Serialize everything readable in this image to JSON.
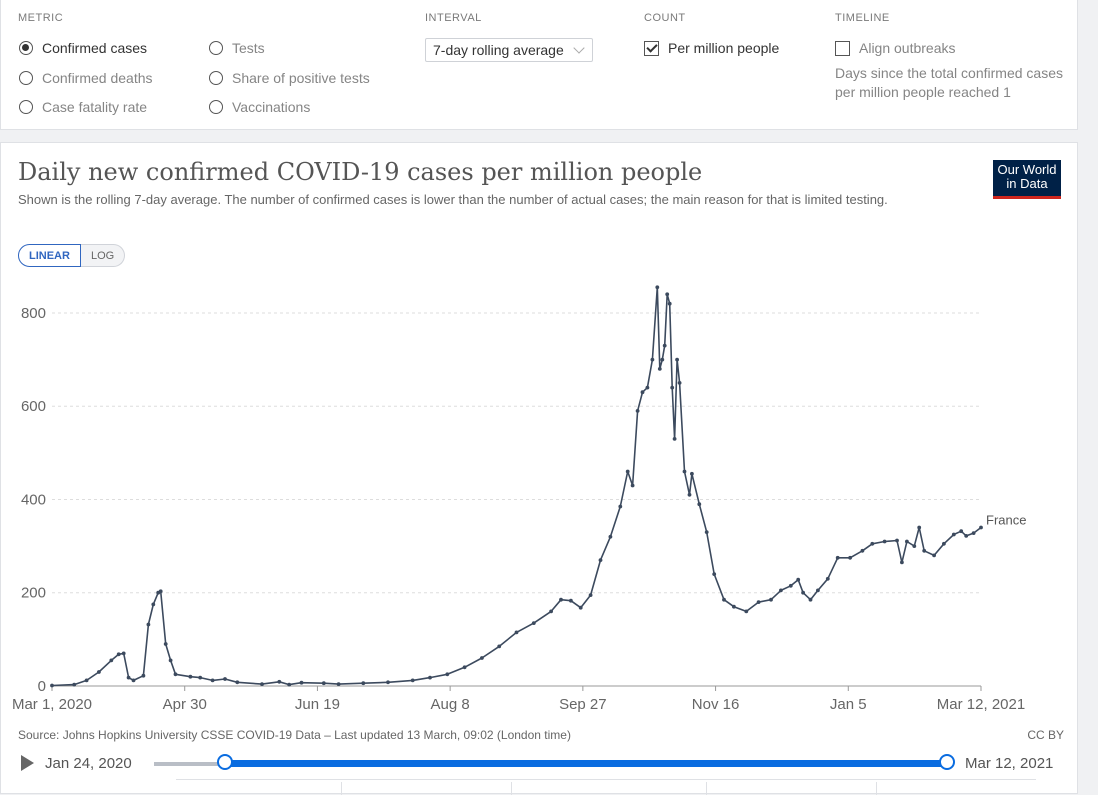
{
  "controls": {
    "metric": {
      "title": "METRIC",
      "options": [
        {
          "label": "Confirmed cases",
          "selected": true
        },
        {
          "label": "Confirmed deaths",
          "selected": false
        },
        {
          "label": "Case fatality rate",
          "selected": false
        },
        {
          "label": "Tests",
          "selected": false
        },
        {
          "label": "Share of positive tests",
          "selected": false
        },
        {
          "label": "Vaccinations",
          "selected": false
        }
      ]
    },
    "interval": {
      "title": "INTERVAL",
      "value": "7-day rolling average"
    },
    "count": {
      "title": "COUNT",
      "label": "Per million people",
      "checked": true
    },
    "timeline": {
      "title": "TIMELINE",
      "label": "Align outbreaks",
      "checked": false,
      "note": "Days since the total confirmed cases per million people reached 1"
    }
  },
  "header": {
    "title": "Daily new confirmed COVID-19 cases per million people",
    "subtitle": "Shown is the rolling 7-day average. The number of confirmed cases is lower than the number of actual cases; the main reason for that is limited testing.",
    "logo": "Our World in Data"
  },
  "scale_toggle": {
    "linear": "LINEAR",
    "log": "LOG",
    "selected": "linear"
  },
  "chart_data": {
    "type": "line",
    "title": "Daily new confirmed COVID-19 cases per million people",
    "x_ticks": [
      "Mar 1, 2020",
      "Apr 30",
      "Jun 19",
      "Aug 8",
      "Sep 27",
      "Nov 16",
      "Jan 5",
      "Mar 12, 2021"
    ],
    "y_ticks": [
      "0",
      "200",
      "400",
      "600",
      "800"
    ],
    "xlim": [
      "2020-03-01",
      "2021-03-12"
    ],
    "ylim": [
      0,
      860
    ],
    "grid": true,
    "series": [
      {
        "name": "France",
        "color": "#3c4a5e",
        "points": [
          [
            "2020-03-01",
            1
          ],
          [
            "2020-03-10",
            3
          ],
          [
            "2020-03-15",
            12
          ],
          [
            "2020-03-20",
            30
          ],
          [
            "2020-03-25",
            55
          ],
          [
            "2020-03-28",
            68
          ],
          [
            "2020-03-30",
            70
          ],
          [
            "2020-04-01",
            18
          ],
          [
            "2020-04-03",
            12
          ],
          [
            "2020-04-07",
            22
          ],
          [
            "2020-04-09",
            132
          ],
          [
            "2020-04-11",
            175
          ],
          [
            "2020-04-13",
            200
          ],
          [
            "2020-04-14",
            203
          ],
          [
            "2020-04-16",
            90
          ],
          [
            "2020-04-18",
            55
          ],
          [
            "2020-04-20",
            25
          ],
          [
            "2020-04-26",
            20
          ],
          [
            "2020-04-30",
            18
          ],
          [
            "2020-05-05",
            12
          ],
          [
            "2020-05-10",
            15
          ],
          [
            "2020-05-15",
            8
          ],
          [
            "2020-05-25",
            4
          ],
          [
            "2020-06-01",
            9
          ],
          [
            "2020-06-05",
            3
          ],
          [
            "2020-06-10",
            7
          ],
          [
            "2020-06-19",
            6
          ],
          [
            "2020-06-25",
            4
          ],
          [
            "2020-07-05",
            6
          ],
          [
            "2020-07-15",
            8
          ],
          [
            "2020-07-25",
            12
          ],
          [
            "2020-08-01",
            18
          ],
          [
            "2020-08-08",
            25
          ],
          [
            "2020-08-15",
            40
          ],
          [
            "2020-08-22",
            60
          ],
          [
            "2020-08-29",
            85
          ],
          [
            "2020-09-05",
            115
          ],
          [
            "2020-09-12",
            135
          ],
          [
            "2020-09-19",
            160
          ],
          [
            "2020-09-23",
            185
          ],
          [
            "2020-09-27",
            183
          ],
          [
            "2020-10-01",
            168
          ],
          [
            "2020-10-05",
            195
          ],
          [
            "2020-10-09",
            270
          ],
          [
            "2020-10-13",
            320
          ],
          [
            "2020-10-17",
            385
          ],
          [
            "2020-10-20",
            460
          ],
          [
            "2020-10-22",
            430
          ],
          [
            "2020-10-24",
            590
          ],
          [
            "2020-10-26",
            630
          ],
          [
            "2020-10-28",
            640
          ],
          [
            "2020-10-30",
            700
          ],
          [
            "2020-11-01",
            855
          ],
          [
            "2020-11-02",
            680
          ],
          [
            "2020-11-03",
            700
          ],
          [
            "2020-11-04",
            730
          ],
          [
            "2020-11-05",
            840
          ],
          [
            "2020-11-06",
            820
          ],
          [
            "2020-11-07",
            640
          ],
          [
            "2020-11-08",
            530
          ],
          [
            "2020-11-09",
            700
          ],
          [
            "2020-11-10",
            650
          ],
          [
            "2020-11-12",
            460
          ],
          [
            "2020-11-14",
            410
          ],
          [
            "2020-11-15",
            455
          ],
          [
            "2020-11-18",
            390
          ],
          [
            "2020-11-21",
            330
          ],
          [
            "2020-11-24",
            240
          ],
          [
            "2020-11-28",
            185
          ],
          [
            "2020-12-02",
            170
          ],
          [
            "2020-12-07",
            160
          ],
          [
            "2020-12-12",
            180
          ],
          [
            "2020-12-17",
            185
          ],
          [
            "2020-12-21",
            205
          ],
          [
            "2020-12-25",
            215
          ],
          [
            "2020-12-28",
            228
          ],
          [
            "2020-12-30",
            200
          ],
          [
            "2021-01-02",
            185
          ],
          [
            "2021-01-05",
            205
          ],
          [
            "2021-01-09",
            230
          ],
          [
            "2021-01-13",
            275
          ],
          [
            "2021-01-18",
            275
          ],
          [
            "2021-01-23",
            290
          ],
          [
            "2021-01-27",
            305
          ],
          [
            "2021-02-01",
            310
          ],
          [
            "2021-02-06",
            312
          ],
          [
            "2021-02-08",
            265
          ],
          [
            "2021-02-10",
            310
          ],
          [
            "2021-02-13",
            300
          ],
          [
            "2021-02-15",
            340
          ],
          [
            "2021-02-17",
            290
          ],
          [
            "2021-02-21",
            280
          ],
          [
            "2021-02-25",
            305
          ],
          [
            "2021-03-01",
            325
          ],
          [
            "2021-03-04",
            332
          ],
          [
            "2021-03-06",
            322
          ],
          [
            "2021-03-09",
            328
          ],
          [
            "2021-03-12",
            340
          ]
        ]
      }
    ]
  },
  "footer": {
    "source": "Source: Johns Hopkins University CSSE COVID-19 Data – Last updated 13 March, 09:02 (London time)",
    "license": "CC BY"
  },
  "timeline_slider": {
    "start_label": "Jan 24, 2020",
    "end_label": "Mar 12, 2021"
  }
}
